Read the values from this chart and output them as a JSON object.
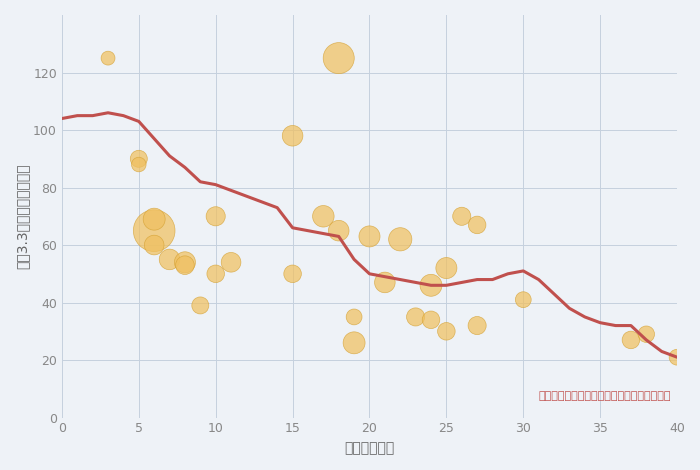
{
  "xlabel": "築年数（年）",
  "ylabel": "坪（3.3㎡）単価（万円）",
  "annotation": "円の大きさは、取引のあった物件面積を示す",
  "xlim": [
    0,
    40
  ],
  "ylim": [
    0,
    140
  ],
  "xticks": [
    0,
    5,
    10,
    15,
    20,
    25,
    30,
    35,
    40
  ],
  "yticks": [
    0,
    20,
    40,
    60,
    80,
    100,
    120
  ],
  "line_x": [
    0,
    1,
    2,
    3,
    4,
    5,
    6,
    7,
    8,
    9,
    10,
    11,
    12,
    13,
    14,
    15,
    16,
    17,
    18,
    19,
    20,
    21,
    22,
    23,
    24,
    25,
    26,
    27,
    28,
    29,
    30,
    31,
    32,
    33,
    34,
    35,
    36,
    37,
    38,
    39,
    40
  ],
  "line_y": [
    104,
    105,
    105,
    106,
    105,
    103,
    97,
    91,
    87,
    82,
    81,
    79,
    77,
    75,
    73,
    66,
    65,
    64,
    63,
    55,
    50,
    49,
    48,
    47,
    46,
    46,
    47,
    48,
    48,
    50,
    51,
    48,
    43,
    38,
    35,
    33,
    32,
    32,
    27,
    23,
    21
  ],
  "line_color": "#c0504d",
  "line_width": 2.2,
  "scatter_x": [
    3,
    5,
    5,
    6,
    6,
    6,
    7,
    8,
    8,
    9,
    10,
    10,
    11,
    15,
    15,
    17,
    18,
    18,
    19,
    19,
    20,
    21,
    22,
    23,
    24,
    24,
    25,
    25,
    26,
    27,
    27,
    30,
    37,
    38,
    40
  ],
  "scatter_y": [
    125,
    90,
    88,
    65,
    69,
    60,
    55,
    54,
    53,
    39,
    70,
    50,
    54,
    98,
    50,
    70,
    125,
    65,
    35,
    26,
    63,
    47,
    62,
    35,
    46,
    34,
    52,
    30,
    70,
    32,
    67,
    41,
    27,
    29,
    21
  ],
  "scatter_size": [
    100,
    150,
    110,
    900,
    250,
    200,
    220,
    230,
    180,
    150,
    190,
    160,
    200,
    220,
    160,
    240,
    500,
    220,
    130,
    250,
    230,
    220,
    280,
    170,
    250,
    160,
    230,
    160,
    170,
    170,
    160,
    130,
    160,
    140,
    130
  ],
  "scatter_color": "#f0c060",
  "scatter_alpha": 0.72,
  "scatter_edge_color": "#d4a030",
  "scatter_edge_width": 0.5,
  "bg_color": "#eef2f7",
  "title_color": "#555555",
  "tick_color": "#888888",
  "label_color": "#666666",
  "annotation_color": "#c0504d",
  "grid_color": "#c5d0de",
  "title_fontsize": 15,
  "axis_label_fontsize": 10,
  "tick_fontsize": 9,
  "annotation_fontsize": 8
}
